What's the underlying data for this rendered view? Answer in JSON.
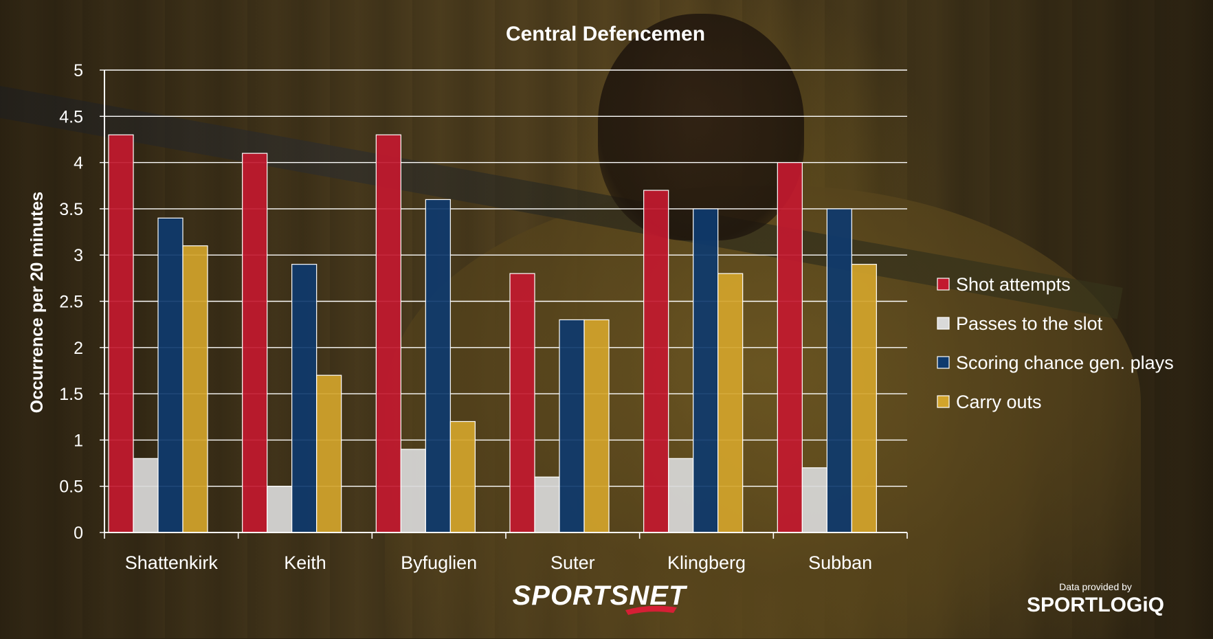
{
  "chart_data": {
    "type": "bar",
    "title": "Central Defencemen",
    "xlabel": "",
    "ylabel": "Occurrence per 20 minutes",
    "ylim": [
      0,
      5
    ],
    "yticks": [
      "0",
      "0.5",
      "1",
      "1.5",
      "2",
      "2.5",
      "3",
      "3.5",
      "4",
      "4.5",
      "5"
    ],
    "grid": true,
    "legend_position": "right",
    "categories": [
      "Shattenkirk",
      "Keith",
      "Byfuglien",
      "Suter",
      "Klingberg",
      "Subban"
    ],
    "series": [
      {
        "name": "Shot attempts",
        "color": "#c2192f",
        "values": [
          4.3,
          4.1,
          4.3,
          2.8,
          3.7,
          4.0
        ]
      },
      {
        "name": "Passes to the slot",
        "color": "#d9d9d9",
        "values": [
          0.8,
          0.5,
          0.9,
          0.6,
          0.8,
          0.7
        ]
      },
      {
        "name": "Scoring chance gen. plays",
        "color": "#0e3a6e",
        "values": [
          3.4,
          2.9,
          3.6,
          2.3,
          3.5,
          3.5
        ]
      },
      {
        "name": "Carry outs",
        "color": "#d2a42b",
        "values": [
          3.1,
          1.7,
          1.2,
          2.3,
          2.8,
          2.9
        ]
      }
    ]
  },
  "credits": {
    "sportsnet": "SPORTSNET",
    "provided_by": "Data provided by",
    "sportlogiq": "SPORTLOGiQ"
  }
}
